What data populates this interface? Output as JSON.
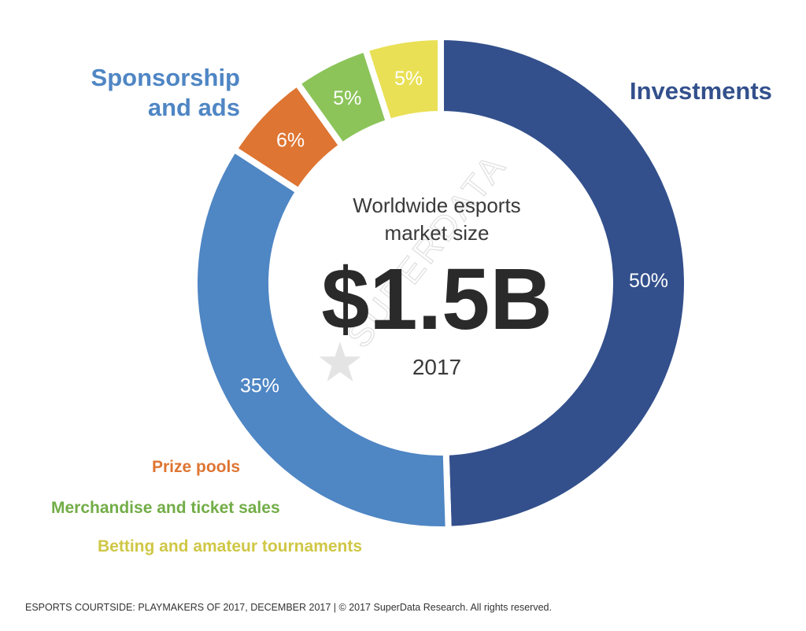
{
  "chart_data": {
    "type": "pie",
    "categories": [
      "Investments",
      "Sponsorship and ads",
      "Prize pools",
      "Merchandise and ticket sales",
      "Betting and amateur tournaments"
    ],
    "values": [
      50,
      35,
      6,
      5,
      5
    ],
    "value_labels": [
      "50%",
      "35%",
      "6%",
      "5%",
      "5%"
    ],
    "colors": [
      "#33508c",
      "#4f86c4",
      "#de7532",
      "#8cc45a",
      "#e9e055"
    ],
    "label_colors": [
      "#33508c",
      "#4f86c4",
      "#de7532",
      "#72ad47",
      "#cfc745"
    ],
    "center": {
      "subtitle": "Worldwide esports market size",
      "value": "$1.5B",
      "year": "2017"
    }
  },
  "labels": {
    "sponsorship": "Sponsorship and ads",
    "investments": "Investments",
    "prize_pools": "Prize pools",
    "merchandise": "Merchandise and ticket sales",
    "betting": "Betting and amateur tournaments"
  },
  "watermark": "SUPERDATA",
  "footer": "ESPORTS COURTSIDE: PLAYMAKERS OF 2017, DECEMBER 2017  |  © 2017 SuperData Research. All rights reserved."
}
